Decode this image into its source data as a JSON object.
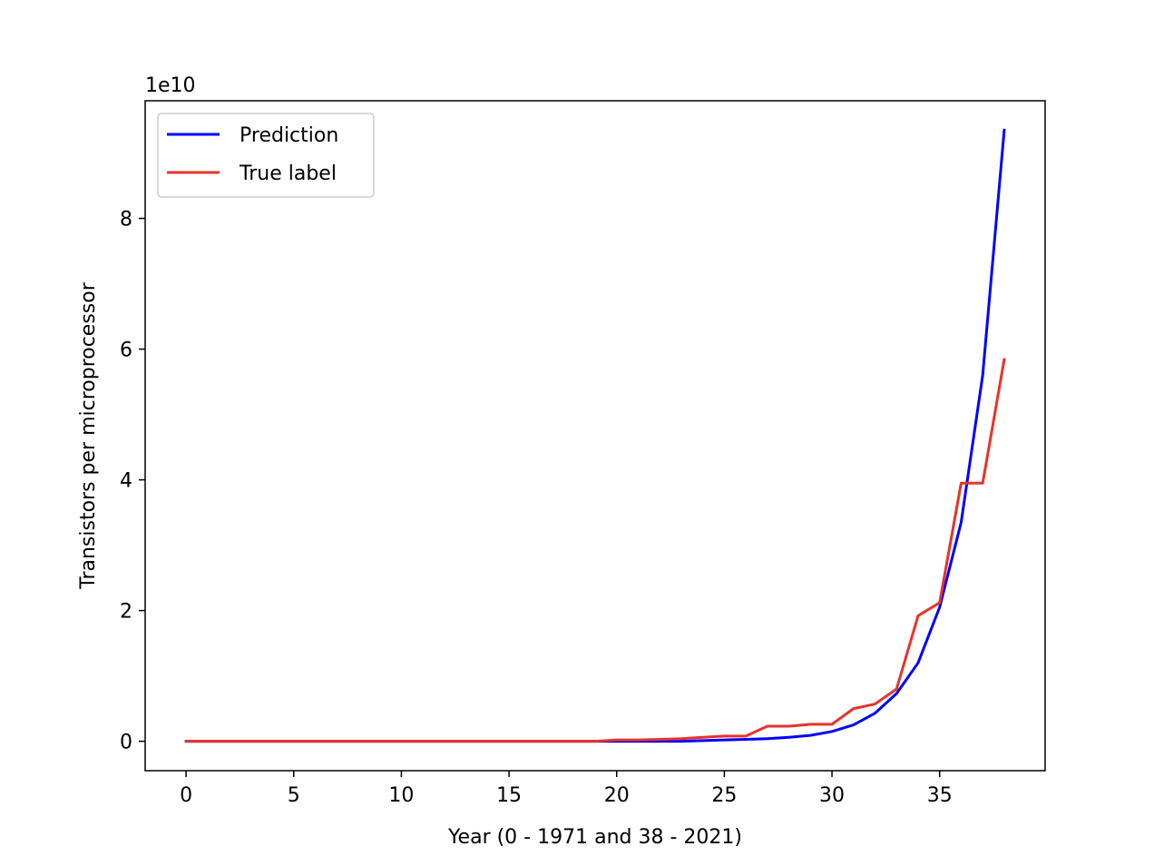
{
  "chart_data": {
    "type": "line",
    "title": "",
    "xlabel": "Year (0 - 1971 and 38 - 2021)",
    "ylabel": "Transistors per microprocessor",
    "y_offset_text": "1e10",
    "xlim": [
      -1.9,
      39.9
    ],
    "ylim": [
      -0.45,
      9.8
    ],
    "y_scale_factor": 10000000000,
    "x_ticks": [
      0,
      5,
      10,
      15,
      20,
      25,
      30,
      35
    ],
    "y_ticks": [
      0,
      2,
      4,
      6,
      8
    ],
    "grid": false,
    "legend_position": "upper-left",
    "x": [
      0,
      1,
      2,
      3,
      4,
      5,
      6,
      7,
      8,
      9,
      10,
      11,
      12,
      13,
      14,
      15,
      16,
      17,
      18,
      19,
      20,
      21,
      22,
      23,
      24,
      25,
      26,
      27,
      28,
      29,
      30,
      31,
      32,
      33,
      34,
      35,
      36,
      37,
      38
    ],
    "series": [
      {
        "name": "Prediction",
        "color": "#0000ff",
        "values": [
          0,
          0,
          0,
          0,
          0,
          0,
          0,
          0,
          0,
          0,
          0,
          0,
          0,
          0,
          0,
          0,
          0,
          0,
          0,
          0,
          0,
          0,
          0,
          0,
          0.01,
          0.02,
          0.03,
          0.04,
          0.06,
          0.09,
          0.15,
          0.25,
          0.43,
          0.73,
          1.2,
          2.05,
          3.35,
          5.6,
          9.35
        ]
      },
      {
        "name": "True label",
        "color": "#e8332a",
        "values": [
          0,
          0,
          0,
          0,
          0,
          0,
          0,
          0,
          0,
          0,
          0,
          0,
          0,
          0,
          0,
          0,
          0,
          0,
          0,
          0,
          0.02,
          0.02,
          0.03,
          0.04,
          0.06,
          0.08,
          0.08,
          0.23,
          0.23,
          0.26,
          0.26,
          0.5,
          0.57,
          0.8,
          1.92,
          2.12,
          3.95,
          3.95,
          5.84
        ]
      }
    ]
  }
}
